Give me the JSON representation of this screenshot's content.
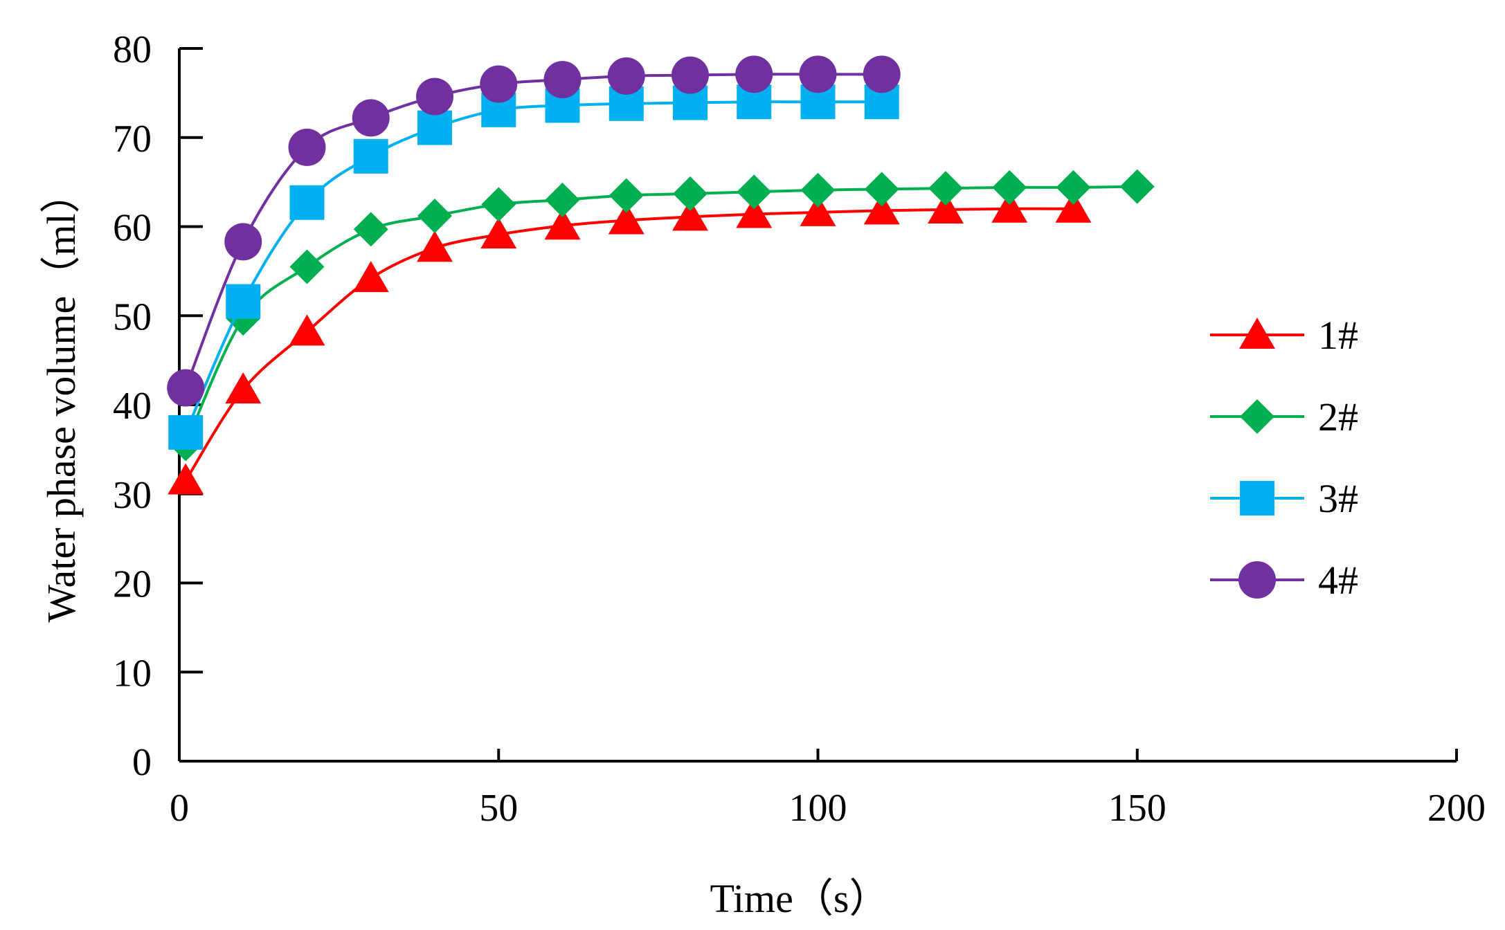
{
  "chart_data": {
    "type": "line",
    "title": "",
    "xlabel": "Time（s）",
    "ylabel": "Water phase volume（ml）",
    "xlim": [
      0,
      200
    ],
    "ylim": [
      0,
      80
    ],
    "xticks": [
      0,
      50,
      100,
      150,
      200
    ],
    "yticks": [
      0,
      10,
      20,
      30,
      40,
      50,
      60,
      70,
      80
    ],
    "xtick_labels": [
      "0",
      "50",
      "100",
      "150",
      "200"
    ],
    "ytick_labels": [
      "0",
      "10",
      "20",
      "30",
      "40",
      "50",
      "60",
      "70",
      "80"
    ],
    "grid": false,
    "legend_position": "right",
    "series": [
      {
        "name": "1#",
        "color": "#FF0000",
        "marker": "triangle",
        "x": [
          1,
          10,
          20,
          30,
          40,
          50,
          60,
          70,
          80,
          90,
          100,
          110,
          120,
          130,
          140
        ],
        "values": [
          31.5,
          41.7,
          48.2,
          54.2,
          57.6,
          59.1,
          60.1,
          60.7,
          61.1,
          61.4,
          61.6,
          61.8,
          61.9,
          62.0,
          62.0
        ]
      },
      {
        "name": "2#",
        "color": "#00B050",
        "marker": "diamond",
        "x": [
          1,
          10,
          20,
          30,
          40,
          50,
          60,
          70,
          80,
          90,
          100,
          110,
          120,
          130,
          140,
          150
        ],
        "values": [
          35.6,
          49.7,
          55.5,
          59.7,
          61.2,
          62.5,
          63.0,
          63.5,
          63.7,
          63.9,
          64.1,
          64.2,
          64.3,
          64.4,
          64.4,
          64.5
        ]
      },
      {
        "name": "3#",
        "color": "#00B0F0",
        "marker": "square",
        "x": [
          1,
          10,
          20,
          30,
          40,
          50,
          60,
          70,
          80,
          90,
          100,
          110
        ],
        "values": [
          36.9,
          51.6,
          62.7,
          67.9,
          71.1,
          73.1,
          73.6,
          73.8,
          73.9,
          74.0,
          74.0,
          74.0
        ]
      },
      {
        "name": "4#",
        "color": "#7030A0",
        "marker": "circle",
        "x": [
          1,
          10,
          20,
          30,
          40,
          50,
          60,
          70,
          80,
          90,
          100,
          110
        ],
        "values": [
          41.9,
          58.3,
          68.9,
          72.2,
          74.6,
          76.0,
          76.5,
          76.9,
          77.0,
          77.1,
          77.1,
          77.1
        ]
      }
    ]
  }
}
